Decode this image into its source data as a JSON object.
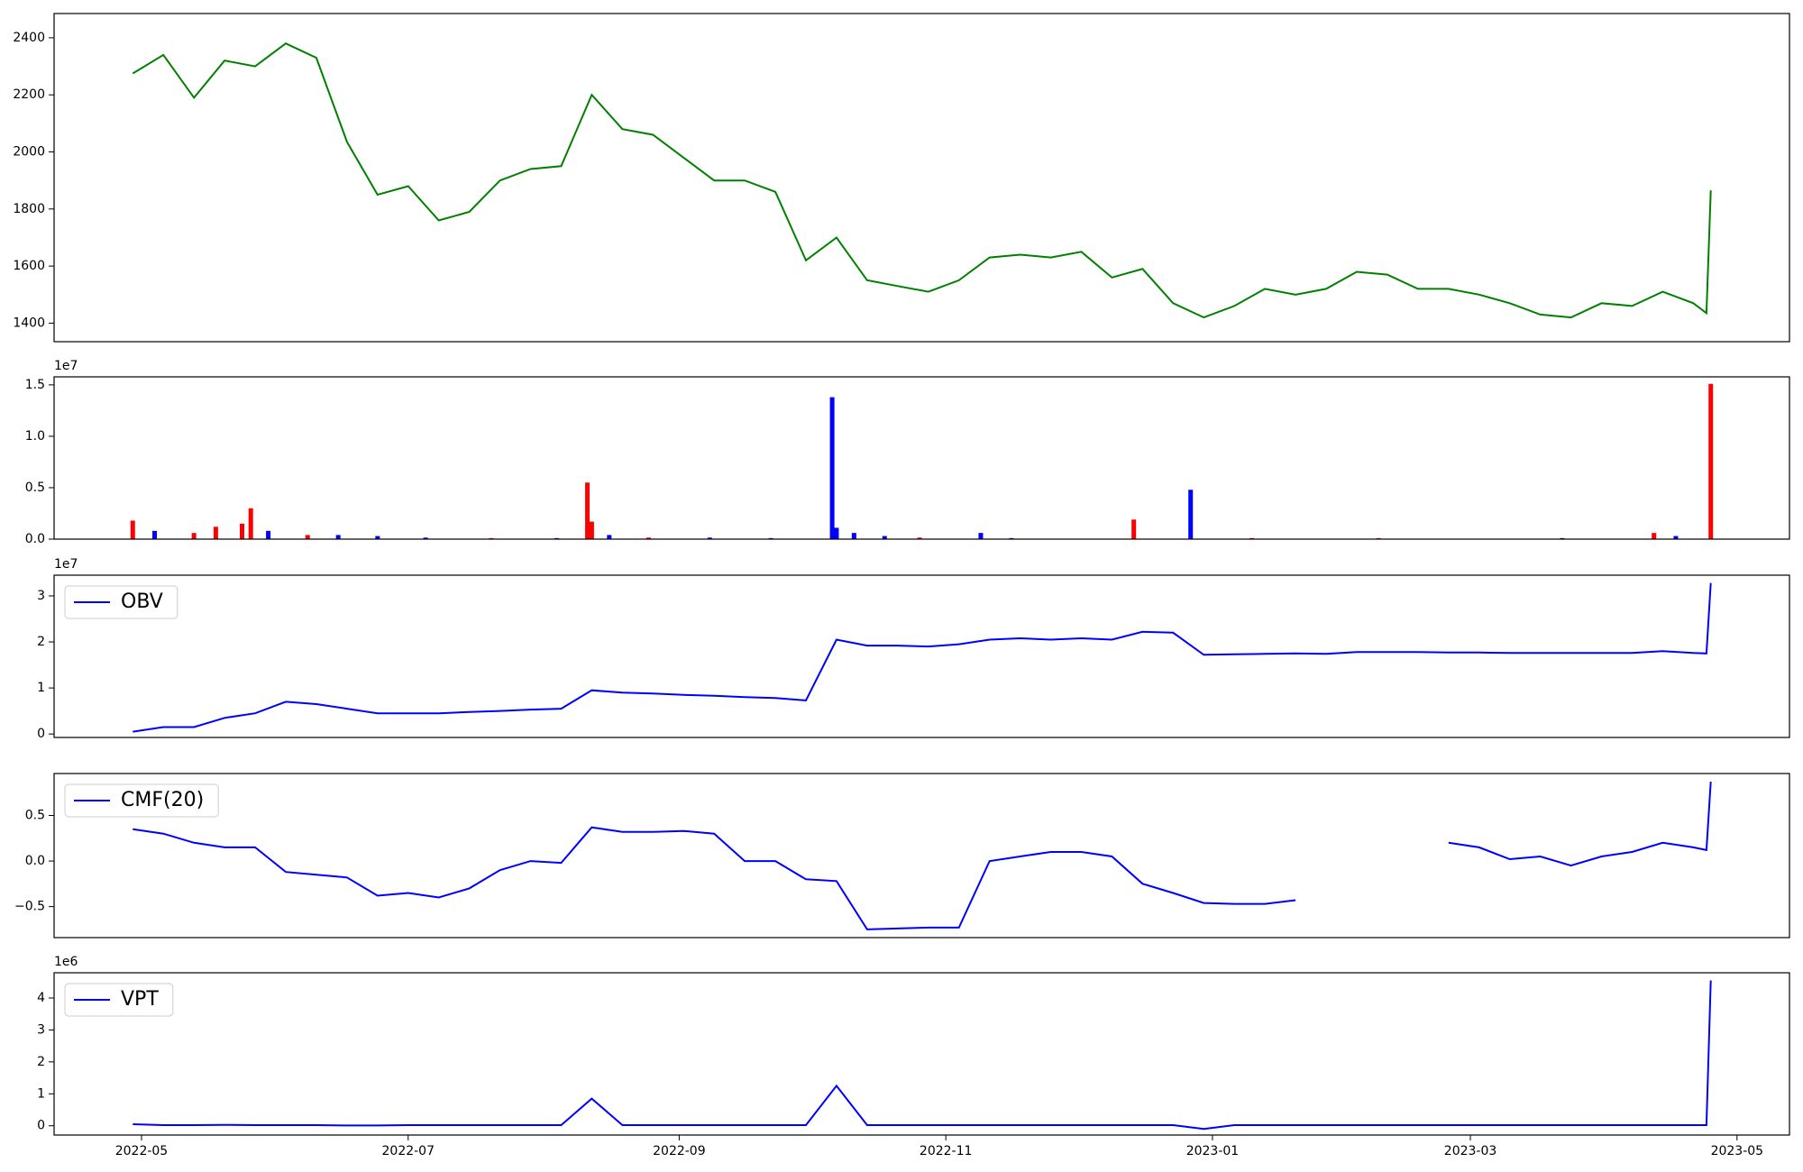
{
  "chart_data": [
    {
      "type": "line",
      "color": "#008000",
      "x": [
        "2022-04-29",
        "2022-05-06",
        "2022-05-13",
        "2022-05-20",
        "2022-05-27",
        "2022-06-03",
        "2022-06-10",
        "2022-06-17",
        "2022-06-24",
        "2022-07-01",
        "2022-07-08",
        "2022-07-15",
        "2022-07-22",
        "2022-07-29",
        "2022-08-05",
        "2022-08-12",
        "2022-08-19",
        "2022-08-26",
        "2022-09-02",
        "2022-09-09",
        "2022-09-16",
        "2022-09-23",
        "2022-09-30",
        "2022-10-07",
        "2022-10-14",
        "2022-10-21",
        "2022-10-28",
        "2022-11-04",
        "2022-11-11",
        "2022-11-18",
        "2022-11-25",
        "2022-12-02",
        "2022-12-09",
        "2022-12-16",
        "2022-12-23",
        "2022-12-30",
        "2023-01-06",
        "2023-01-13",
        "2023-01-20",
        "2023-01-27",
        "2023-02-03",
        "2023-02-10",
        "2023-02-17",
        "2023-02-24",
        "2023-03-03",
        "2023-03-10",
        "2023-03-17",
        "2023-03-24",
        "2023-03-31",
        "2023-04-07",
        "2023-04-14",
        "2023-04-21",
        "2023-04-24",
        "2023-04-25"
      ],
      "values": [
        2275,
        2340,
        2190,
        2320,
        2300,
        2380,
        2330,
        2035,
        1850,
        1880,
        1760,
        1790,
        1900,
        1940,
        1950,
        2200,
        2080,
        2060,
        1980,
        1900,
        1900,
        1860,
        1620,
        1700,
        1550,
        1530,
        1510,
        1550,
        1630,
        1640,
        1630,
        1650,
        1560,
        1590,
        1470,
        1420,
        1460,
        1520,
        1500,
        1520,
        1580,
        1570,
        1520,
        1520,
        1500,
        1470,
        1430,
        1420,
        1470,
        1460,
        1510,
        1470,
        1435,
        1865
      ],
      "xlim": [
        "2022-04-11",
        "2023-05-13"
      ],
      "ylim": [
        1335,
        2485
      ],
      "yticks": [
        1400,
        1600,
        1800,
        2000,
        2200,
        2400
      ]
    },
    {
      "type": "bar",
      "offset_label": "1e7",
      "x": [
        "2022-04-29",
        "2022-05-04",
        "2022-05-13",
        "2022-05-18",
        "2022-05-24",
        "2022-05-26",
        "2022-05-30",
        "2022-06-08",
        "2022-06-15",
        "2022-06-24",
        "2022-07-05",
        "2022-07-20",
        "2022-08-04",
        "2022-08-11",
        "2022-08-12",
        "2022-08-16",
        "2022-08-25",
        "2022-09-08",
        "2022-09-22",
        "2022-10-06",
        "2022-10-07",
        "2022-10-11",
        "2022-10-18",
        "2022-10-26",
        "2022-11-09",
        "2022-11-16",
        "2022-12-14",
        "2022-12-27",
        "2023-01-10",
        "2023-02-08",
        "2023-03-22",
        "2023-04-12",
        "2023-04-17",
        "2023-04-25"
      ],
      "values": [
        1800000,
        800000,
        600000,
        1200000,
        1500000,
        3000000,
        800000,
        400000,
        400000,
        300000,
        150000,
        100000,
        100000,
        5500000,
        1700000,
        400000,
        150000,
        150000,
        100000,
        13800000,
        1100000,
        600000,
        300000,
        150000,
        600000,
        100000,
        1900000,
        4800000,
        100000,
        100000,
        100000,
        600000,
        300000,
        15100000
      ],
      "colors": [
        "#ff0000",
        "#0000ff",
        "#ff0000",
        "#ff0000",
        "#ff0000",
        "#ff0000",
        "#0000ff",
        "#ff0000",
        "#0000ff",
        "#0000ff",
        "#0000ff",
        "#ff0000",
        "#0000ff",
        "#ff0000",
        "#ff0000",
        "#0000ff",
        "#ff0000",
        "#0000ff",
        "#0000ff",
        "#0000ff",
        "#0000ff",
        "#0000ff",
        "#0000ff",
        "#ff0000",
        "#0000ff",
        "#0000ff",
        "#ff0000",
        "#0000ff",
        "#ff0000",
        "#ff0000",
        "#0000ff",
        "#ff0000",
        "#0000ff",
        "#ff0000"
      ],
      "xlim": [
        "2022-04-11",
        "2023-05-13"
      ],
      "ylim": [
        0,
        15780000
      ],
      "yticks": [
        {
          "value": 0,
          "label": "0.0"
        },
        {
          "value": 5000000,
          "label": "0.5"
        },
        {
          "value": 10000000,
          "label": "1.0"
        },
        {
          "value": 15000000,
          "label": "1.5"
        }
      ]
    },
    {
      "type": "line",
      "offset_label": "1e7",
      "legend": "upper left",
      "x": [
        "2022-04-29",
        "2022-05-06",
        "2022-05-13",
        "2022-05-20",
        "2022-05-27",
        "2022-06-03",
        "2022-06-10",
        "2022-06-17",
        "2022-06-24",
        "2022-07-01",
        "2022-07-08",
        "2022-07-15",
        "2022-07-22",
        "2022-07-29",
        "2022-08-05",
        "2022-08-12",
        "2022-08-19",
        "2022-08-26",
        "2022-09-02",
        "2022-09-09",
        "2022-09-16",
        "2022-09-23",
        "2022-09-30",
        "2022-10-07",
        "2022-10-14",
        "2022-10-21",
        "2022-10-28",
        "2022-11-04",
        "2022-11-11",
        "2022-11-18",
        "2022-11-25",
        "2022-12-02",
        "2022-12-09",
        "2022-12-16",
        "2022-12-23",
        "2022-12-30",
        "2023-01-06",
        "2023-01-13",
        "2023-01-20",
        "2023-01-27",
        "2023-02-03",
        "2023-02-10",
        "2023-02-17",
        "2023-02-24",
        "2023-03-03",
        "2023-03-10",
        "2023-03-17",
        "2023-03-24",
        "2023-03-31",
        "2023-04-07",
        "2023-04-14",
        "2023-04-21",
        "2023-04-24",
        "2023-04-25"
      ],
      "series": [
        {
          "name": "OBV",
          "color": "#0000ff",
          "values": [
            500000,
            1500000,
            1500000,
            3500000,
            4500000,
            7000000,
            6500000,
            5500000,
            4500000,
            4500000,
            4500000,
            4800000,
            5000000,
            5300000,
            5500000,
            9500000,
            9000000,
            8800000,
            8500000,
            8300000,
            8000000,
            7800000,
            7300000,
            20500000,
            19200000,
            19200000,
            19000000,
            19500000,
            20500000,
            20800000,
            20500000,
            20800000,
            20500000,
            22200000,
            22000000,
            17200000,
            17300000,
            17400000,
            17500000,
            17400000,
            17800000,
            17800000,
            17800000,
            17700000,
            17700000,
            17600000,
            17600000,
            17600000,
            17600000,
            17600000,
            18000000,
            17600000,
            17500000,
            32800000
          ]
        }
      ],
      "xlim": [
        "2022-04-11",
        "2023-05-13"
      ],
      "ylim": [
        -750000,
        34500000
      ],
      "yticks": [
        0,
        {
          "value": 10000000,
          "label": "1"
        },
        {
          "value": 20000000,
          "label": "2"
        },
        {
          "value": 30000000,
          "label": "3"
        }
      ]
    },
    {
      "type": "line",
      "legend": "upper left",
      "x": [
        "2022-04-29",
        "2022-05-06",
        "2022-05-13",
        "2022-05-20",
        "2022-05-27",
        "2022-06-03",
        "2022-06-10",
        "2022-06-17",
        "2022-06-24",
        "2022-07-01",
        "2022-07-08",
        "2022-07-15",
        "2022-07-22",
        "2022-07-29",
        "2022-08-05",
        "2022-08-12",
        "2022-08-19",
        "2022-08-26",
        "2022-09-02",
        "2022-09-09",
        "2022-09-16",
        "2022-09-23",
        "2022-09-30",
        "2022-10-07",
        "2022-10-14",
        "2022-10-21",
        "2022-10-28",
        "2022-11-04",
        "2022-11-11",
        "2022-11-18",
        "2022-11-25",
        "2022-12-02",
        "2022-12-09",
        "2022-12-16",
        "2022-12-23",
        "2022-12-30",
        "2023-01-06",
        "2023-01-13",
        "2023-01-20",
        "2023-01-27",
        "2023-02-03",
        "2023-02-10",
        "2023-02-17",
        "2023-02-24",
        "2023-03-03",
        "2023-03-10",
        "2023-03-17",
        "2023-03-24",
        "2023-03-31",
        "2023-04-07",
        "2023-04-14",
        "2023-04-21",
        "2023-04-24",
        "2023-04-25"
      ],
      "series": [
        {
          "name": "CMF(20)",
          "color": "#0000ff",
          "values": [
            0.35,
            0.3,
            0.2,
            0.15,
            0.15,
            -0.12,
            -0.15,
            -0.18,
            -0.38,
            -0.35,
            -0.4,
            -0.3,
            -0.1,
            0.0,
            -0.02,
            0.37,
            0.32,
            0.32,
            0.33,
            0.3,
            0.0,
            0.0,
            -0.2,
            -0.22,
            -0.75,
            -0.74,
            -0.73,
            -0.73,
            0.0,
            0.05,
            0.1,
            0.1,
            0.05,
            -0.25,
            -0.35,
            -0.46,
            -0.47,
            -0.47,
            -0.43,
            null,
            null,
            null,
            null,
            0.2,
            0.15,
            0.02,
            0.05,
            -0.05,
            0.05,
            0.1,
            0.2,
            0.15,
            0.12,
            0.87
          ]
        }
      ],
      "xlim": [
        "2022-04-11",
        "2023-05-13"
      ],
      "ylim": [
        -0.84,
        0.96
      ],
      "yticks": [
        {
          "value": -0.5,
          "label": "−0.5"
        },
        {
          "value": 0,
          "label": "0.0"
        },
        0.5
      ]
    },
    {
      "type": "line",
      "offset_label": "1e6",
      "legend": "upper left",
      "x": [
        "2022-04-29",
        "2022-05-06",
        "2022-05-13",
        "2022-05-20",
        "2022-05-27",
        "2022-06-03",
        "2022-06-10",
        "2022-06-17",
        "2022-06-24",
        "2022-07-01",
        "2022-07-08",
        "2022-07-15",
        "2022-07-22",
        "2022-07-29",
        "2022-08-05",
        "2022-08-12",
        "2022-08-19",
        "2022-08-26",
        "2022-09-02",
        "2022-09-09",
        "2022-09-16",
        "2022-09-23",
        "2022-09-30",
        "2022-10-07",
        "2022-10-14",
        "2022-10-21",
        "2022-10-28",
        "2022-11-04",
        "2022-11-11",
        "2022-11-18",
        "2022-11-25",
        "2022-12-02",
        "2022-12-09",
        "2022-12-16",
        "2022-12-23",
        "2022-12-30",
        "2023-01-06",
        "2023-01-13",
        "2023-01-20",
        "2023-01-27",
        "2023-02-03",
        "2023-02-10",
        "2023-02-17",
        "2023-02-24",
        "2023-03-03",
        "2023-03-10",
        "2023-03-17",
        "2023-03-24",
        "2023-03-31",
        "2023-04-07",
        "2023-04-14",
        "2023-04-21",
        "2023-04-24",
        "2023-04-25"
      ],
      "series": [
        {
          "name": "VPT",
          "color": "#0000ff",
          "values": [
            50000,
            20000,
            20000,
            30000,
            20000,
            20000,
            20000,
            10000,
            10000,
            20000,
            20000,
            20000,
            20000,
            20000,
            20000,
            850000,
            20000,
            20000,
            20000,
            20000,
            20000,
            20000,
            20000,
            1250000,
            20000,
            20000,
            20000,
            20000,
            20000,
            20000,
            20000,
            20000,
            20000,
            20000,
            20000,
            -100000,
            20000,
            20000,
            20000,
            20000,
            20000,
            20000,
            20000,
            20000,
            20000,
            20000,
            20000,
            20000,
            20000,
            20000,
            20000,
            20000,
            20000,
            4550000
          ]
        }
      ],
      "xlim": [
        "2022-04-11",
        "2023-05-13"
      ],
      "ylim": [
        -290000,
        4790000
      ],
      "yticks": [
        0,
        {
          "value": 1000000,
          "label": "1"
        },
        {
          "value": 2000000,
          "label": "2"
        },
        {
          "value": 3000000,
          "label": "3"
        },
        {
          "value": 4000000,
          "label": "4"
        }
      ],
      "xticks": [
        {
          "value": "2022-05-01",
          "label": "2022-05"
        },
        {
          "value": "2022-07-01",
          "label": "2022-07"
        },
        {
          "value": "2022-09-01",
          "label": "2022-09"
        },
        {
          "value": "2022-11-01",
          "label": "2022-11"
        },
        {
          "value": "2023-01-01",
          "label": "2023-01"
        },
        {
          "value": "2023-03-01",
          "label": "2023-03"
        },
        {
          "value": "2023-05-01",
          "label": "2023-05"
        }
      ]
    }
  ]
}
